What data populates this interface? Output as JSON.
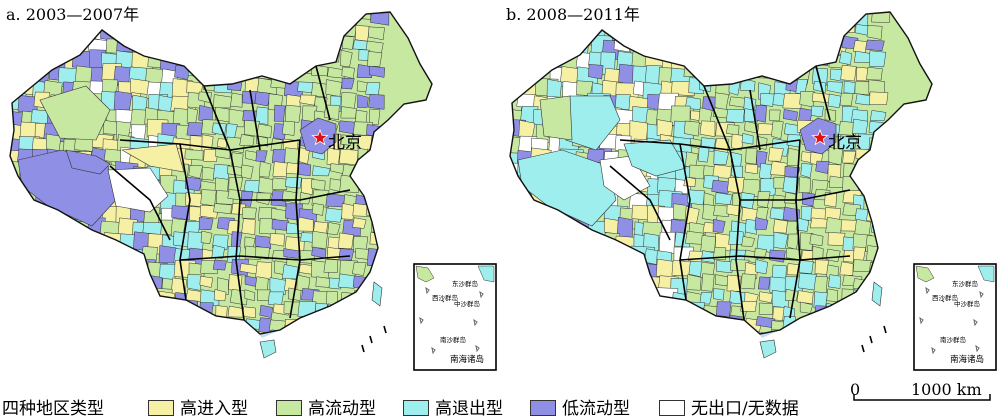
{
  "panels": [
    {
      "title": "a. 2003—2007年",
      "city_label": "北京",
      "inset": {
        "labels": [
          "东沙群岛",
          "西沙群岛",
          "中沙群岛",
          "南沙群岛",
          "南海诸岛"
        ]
      }
    },
    {
      "title": "b. 2008—2011年",
      "city_label": "北京",
      "inset": {
        "labels": [
          "东沙群岛",
          "西沙群岛",
          "中沙群岛",
          "南沙群岛",
          "南海诸岛"
        ]
      }
    }
  ],
  "legend": {
    "title": "四种地区类型",
    "items": [
      {
        "label": "高进入型",
        "color": "#f5f0a3"
      },
      {
        "label": "高流动型",
        "color": "#c6e8a0"
      },
      {
        "label": "高退出型",
        "color": "#9eeeee"
      },
      {
        "label": "低流动型",
        "color": "#8f8fe6"
      },
      {
        "label": "无出口/无数据",
        "color": "#ffffff"
      }
    ]
  },
  "scalebar": {
    "zero": "0",
    "distance": "1000 km"
  },
  "colors": {
    "border": "#111111",
    "coast": "#bcd8f5",
    "star": "#dd1111"
  }
}
